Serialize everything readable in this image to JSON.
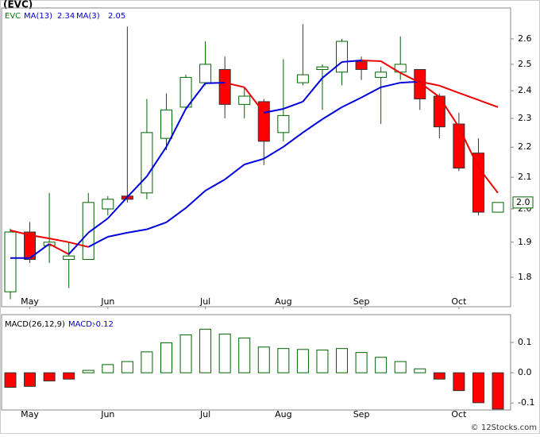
{
  "chart_data": [
    {
      "type": "candlestick",
      "title": "(EVC)",
      "symbol": "EVC",
      "log_scale": true,
      "categories": [
        null,
        "May",
        null,
        null,
        null,
        "Jun",
        null,
        null,
        null,
        null,
        "Jul",
        null,
        null,
        null,
        "Aug",
        null,
        null,
        null,
        "Sep",
        null,
        null,
        null,
        null,
        "Oct",
        null,
        null
      ],
      "open": [
        1.76,
        1.93,
        1.89,
        1.85,
        1.85,
        2.0,
        2.04,
        2.05,
        2.23,
        2.34,
        2.43,
        2.48,
        2.35,
        2.36,
        2.25,
        2.43,
        2.48,
        2.47,
        2.51,
        2.45,
        2.47,
        2.48,
        2.38,
        2.28,
        2.18,
        1.99
      ],
      "high": [
        1.94,
        1.96,
        2.05,
        1.9,
        2.05,
        2.04,
        2.65,
        2.37,
        2.39,
        2.46,
        2.59,
        2.53,
        2.41,
        2.37,
        2.52,
        2.66,
        2.5,
        2.6,
        2.53,
        2.49,
        2.61,
        2.48,
        2.39,
        2.32,
        2.23,
        2.02
      ],
      "low": [
        1.74,
        1.84,
        1.84,
        1.77,
        1.85,
        1.98,
        2.02,
        2.03,
        2.19,
        2.33,
        2.42,
        2.3,
        2.3,
        2.14,
        2.22,
        2.42,
        2.33,
        2.42,
        2.44,
        2.28,
        2.44,
        2.33,
        2.23,
        2.12,
        1.98,
        1.99
      ],
      "close": [
        1.93,
        1.85,
        1.9,
        1.86,
        2.02,
        2.03,
        2.03,
        2.25,
        2.33,
        2.45,
        2.5,
        2.35,
        2.38,
        2.22,
        2.31,
        2.46,
        2.49,
        2.59,
        2.48,
        2.47,
        2.5,
        2.37,
        2.27,
        2.13,
        1.99,
        2.02
      ],
      "up_color": "#006400",
      "down_color": "#ff0000",
      "series": [
        {
          "name": "MA(13)",
          "values": [
            1.935,
            1.921,
            1.911,
            1.9,
            1.886,
            1.916,
            1.928,
            1.938,
            1.959,
            2.003,
            2.057,
            2.093,
            2.142,
            2.161,
            2.201,
            2.25,
            2.297,
            2.34,
            2.375,
            2.413,
            2.43,
            2.434,
            2.419,
            2.392,
            2.366,
            2.34
          ]
        },
        {
          "name": "MA(3)",
          "values": [
            1.854,
            1.854,
            1.895,
            1.865,
            1.928,
            1.971,
            2.037,
            2.103,
            2.201,
            2.334,
            2.428,
            2.43,
            2.413,
            2.32,
            2.334,
            2.36,
            2.448,
            2.509,
            2.515,
            2.512,
            2.467,
            2.43,
            2.377,
            2.269,
            2.132,
            2.05
          ]
        }
      ],
      "rising_color": "#0000dd",
      "falling_color": "#ee0000",
      "last_price_label": "2.0",
      "ylim": [
        1.72,
        2.727
      ],
      "yticks": [
        1.8,
        1.9,
        {
          "value": 2,
          "label": "2.0"
        },
        2.1,
        2.2,
        2.3,
        2.4,
        2.5,
        2.6
      ]
    },
    {
      "type": "bar",
      "name": "MACD(26,12,9)",
      "value_prefix": "MACD:",
      "categories": [
        null,
        "May",
        null,
        null,
        null,
        "Jun",
        null,
        null,
        null,
        null,
        "Jul",
        null,
        null,
        null,
        "Aug",
        null,
        null,
        null,
        "Sep",
        null,
        null,
        null,
        null,
        "Oct",
        null,
        null
      ],
      "values": [
        -0.048,
        -0.045,
        -0.027,
        -0.021,
        0.008,
        0.027,
        0.037,
        0.069,
        0.099,
        0.125,
        0.144,
        0.128,
        0.115,
        0.085,
        0.08,
        0.077,
        0.075,
        0.08,
        0.067,
        0.051,
        0.037,
        0.013,
        -0.021,
        -0.059,
        -0.099,
        -0.12
      ],
      "positive_color": "#006400",
      "negative_color": "#ff0000",
      "ylim": [
        -0.123,
        0.192
      ],
      "yticks": [
        -0.1,
        {
          "value": 0,
          "label": "0.0"
        },
        0.1
      ]
    }
  ],
  "credit": "© 12Stocks.com"
}
